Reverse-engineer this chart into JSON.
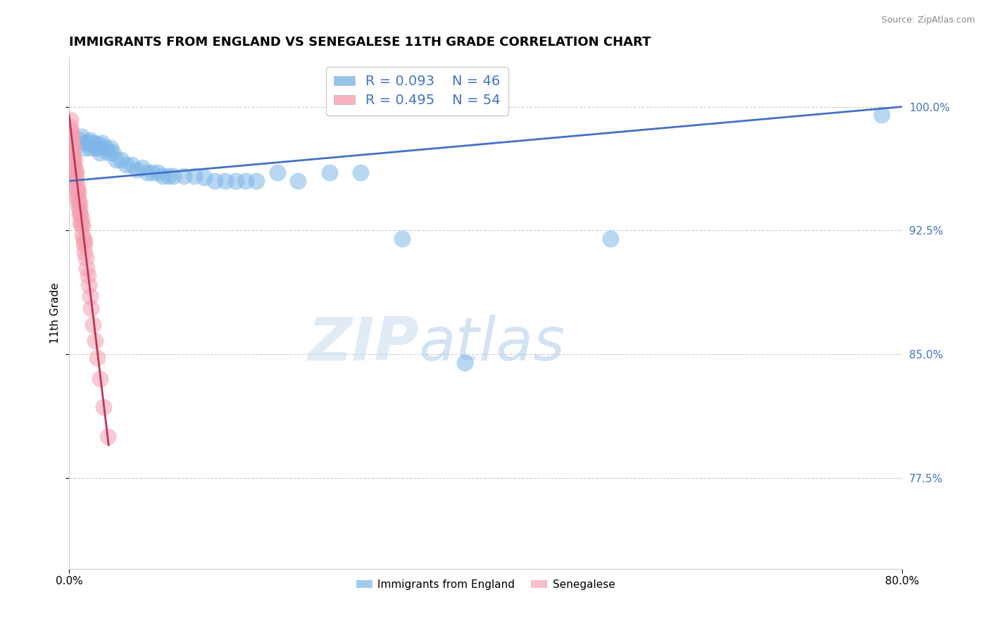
{
  "title": "IMMIGRANTS FROM ENGLAND VS SENEGALESE 11TH GRADE CORRELATION CHART",
  "source_text": "Source: ZipAtlas.com",
  "ylabel": "11th Grade",
  "xlim": [
    0.0,
    0.8
  ],
  "ylim": [
    0.72,
    1.03
  ],
  "yticks": [
    0.775,
    0.85,
    0.925,
    1.0
  ],
  "ytick_labels": [
    "77.5%",
    "85.0%",
    "92.5%",
    "100.0%"
  ],
  "xticks": [
    0.0,
    0.8
  ],
  "xtick_labels": [
    "0.0%",
    "80.0%"
  ],
  "legend_r1": "R = 0.093",
  "legend_n1": "N = 46",
  "legend_r2": "R = 0.495",
  "legend_n2": "N = 54",
  "blue_color": "#7EB6E8",
  "pink_color": "#F4A0B0",
  "trend_blue": "#4472C4",
  "trend_pink": "#C0335A",
  "grid_color": "#CCCCCC",
  "blue_scatter_x": [
    0.01,
    0.012,
    0.015,
    0.015,
    0.018,
    0.02,
    0.02,
    0.022,
    0.025,
    0.025,
    0.028,
    0.03,
    0.03,
    0.032,
    0.035,
    0.038,
    0.04,
    0.042,
    0.045,
    0.05,
    0.055,
    0.06,
    0.065,
    0.07,
    0.075,
    0.08,
    0.085,
    0.09,
    0.095,
    0.1,
    0.11,
    0.12,
    0.13,
    0.14,
    0.15,
    0.16,
    0.17,
    0.18,
    0.2,
    0.22,
    0.25,
    0.28,
    0.32,
    0.38,
    0.52,
    0.78
  ],
  "blue_scatter_y": [
    0.98,
    0.982,
    0.978,
    0.975,
    0.978,
    0.98,
    0.975,
    0.978,
    0.978,
    0.975,
    0.975,
    0.977,
    0.972,
    0.978,
    0.975,
    0.972,
    0.975,
    0.972,
    0.968,
    0.968,
    0.965,
    0.965,
    0.962,
    0.963,
    0.96,
    0.96,
    0.96,
    0.958,
    0.958,
    0.958,
    0.958,
    0.958,
    0.957,
    0.955,
    0.955,
    0.955,
    0.955,
    0.955,
    0.96,
    0.955,
    0.96,
    0.96,
    0.92,
    0.845,
    0.92,
    0.995
  ],
  "pink_scatter_x": [
    0.001,
    0.001,
    0.001,
    0.002,
    0.002,
    0.002,
    0.003,
    0.003,
    0.003,
    0.003,
    0.004,
    0.004,
    0.004,
    0.004,
    0.005,
    0.005,
    0.005,
    0.006,
    0.006,
    0.006,
    0.007,
    0.007,
    0.007,
    0.008,
    0.008,
    0.008,
    0.009,
    0.009,
    0.009,
    0.01,
    0.01,
    0.01,
    0.011,
    0.011,
    0.012,
    0.012,
    0.013,
    0.013,
    0.014,
    0.014,
    0.015,
    0.015,
    0.016,
    0.017,
    0.018,
    0.019,
    0.02,
    0.021,
    0.023,
    0.025,
    0.027,
    0.03,
    0.033,
    0.037
  ],
  "pink_scatter_y": [
    0.992,
    0.988,
    0.985,
    0.985,
    0.982,
    0.98,
    0.982,
    0.978,
    0.975,
    0.972,
    0.975,
    0.97,
    0.968,
    0.965,
    0.968,
    0.965,
    0.962,
    0.962,
    0.958,
    0.955,
    0.96,
    0.955,
    0.95,
    0.952,
    0.948,
    0.945,
    0.948,
    0.943,
    0.94,
    0.942,
    0.938,
    0.935,
    0.935,
    0.93,
    0.932,
    0.928,
    0.928,
    0.922,
    0.92,
    0.916,
    0.918,
    0.912,
    0.908,
    0.902,
    0.898,
    0.892,
    0.885,
    0.878,
    0.868,
    0.858,
    0.848,
    0.835,
    0.818,
    0.8
  ],
  "blue_trend_x": [
    0.0,
    0.8
  ],
  "blue_trend_y": [
    0.955,
    1.0
  ],
  "pink_trend_x": [
    0.0,
    0.038
  ],
  "pink_trend_y": [
    0.995,
    0.795
  ]
}
